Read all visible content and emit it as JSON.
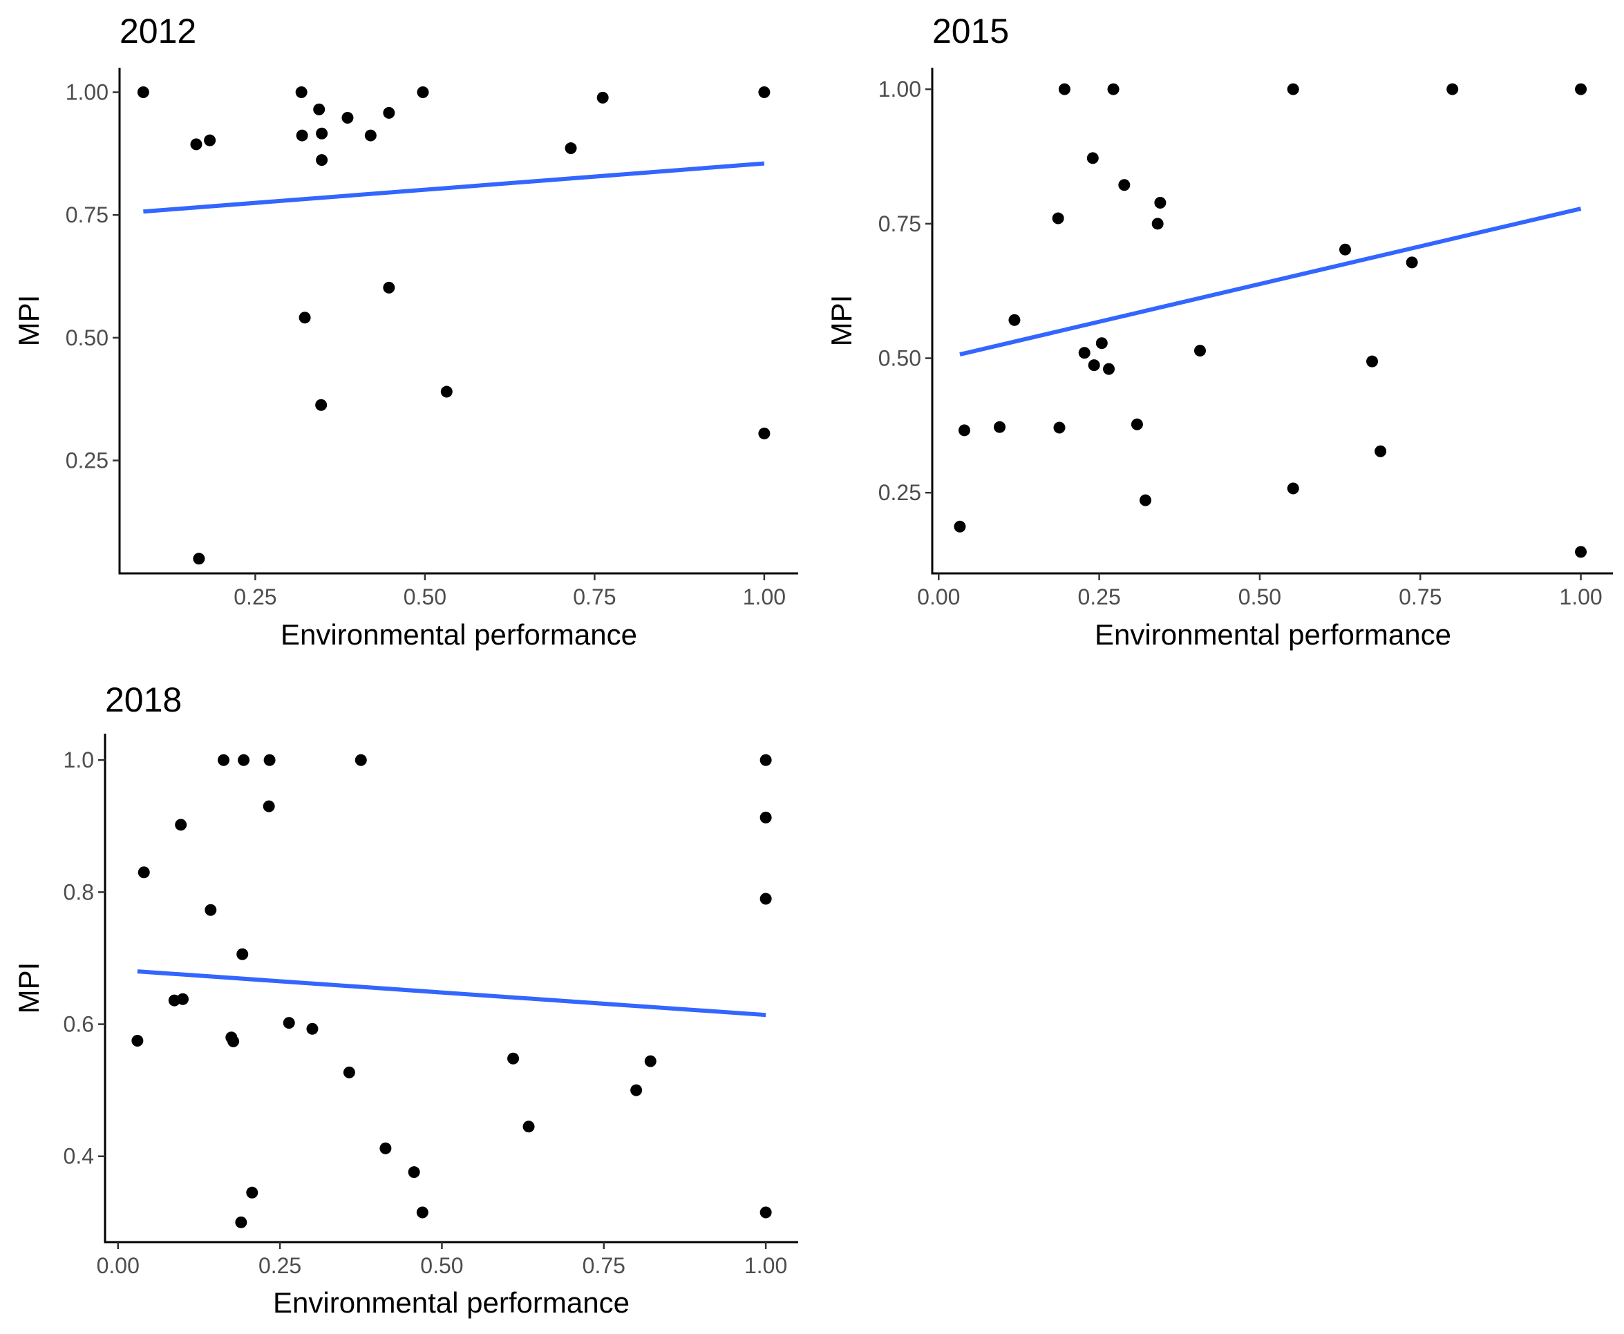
{
  "chart_data": [
    {
      "type": "scatter",
      "title": "2012",
      "xlabel": "Environmental performance",
      "ylabel": "MPI",
      "xlim": [
        0.05,
        1.05
      ],
      "ylim": [
        0.02,
        1.05
      ],
      "xticks": [
        0.25,
        0.5,
        0.75,
        1.0
      ],
      "xtick_labels": [
        "0.25",
        "0.50",
        "0.75",
        "1.00"
      ],
      "yticks": [
        0.25,
        0.5,
        0.75,
        1.0
      ],
      "ytick_labels": [
        "0.25",
        "0.50",
        "0.75",
        "1.00"
      ],
      "grid": false,
      "trend_line": {
        "x": [
          0.085,
          1.0
        ],
        "y": [
          0.757,
          0.855
        ],
        "color": "#3366FF"
      },
      "points": [
        [
          0.085,
          1.0
        ],
        [
          0.163,
          0.894
        ],
        [
          0.183,
          0.902
        ],
        [
          0.167,
          0.05
        ],
        [
          0.318,
          1.0
        ],
        [
          0.319,
          0.912
        ],
        [
          0.344,
          0.965
        ],
        [
          0.348,
          0.916
        ],
        [
          0.348,
          0.862
        ],
        [
          0.386,
          0.948
        ],
        [
          0.42,
          0.912
        ],
        [
          0.447,
          0.958
        ],
        [
          0.497,
          1.0
        ],
        [
          0.323,
          0.541
        ],
        [
          0.347,
          0.363
        ],
        [
          0.447,
          0.602
        ],
        [
          0.532,
          0.39
        ],
        [
          0.715,
          0.886
        ],
        [
          0.762,
          0.989
        ],
        [
          1.0,
          1.0
        ],
        [
          1.0,
          0.305
        ]
      ]
    },
    {
      "type": "scatter",
      "title": "2015",
      "xlabel": "Environmental performance",
      "ylabel": "MPI",
      "xlim": [
        -0.01,
        1.05
      ],
      "ylim": [
        0.1,
        1.04
      ],
      "xticks": [
        0.0,
        0.25,
        0.5,
        0.75,
        1.0
      ],
      "xtick_labels": [
        "0.00",
        "0.25",
        "0.50",
        "0.75",
        "1.00"
      ],
      "yticks": [
        0.25,
        0.5,
        0.75,
        1.0
      ],
      "ytick_labels": [
        "0.25",
        "0.50",
        "0.75",
        "1.00"
      ],
      "grid": false,
      "trend_line": {
        "x": [
          0.033,
          1.0
        ],
        "y": [
          0.507,
          0.778
        ],
        "color": "#3366FF"
      },
      "points": [
        [
          0.033,
          0.187
        ],
        [
          0.04,
          0.366
        ],
        [
          0.095,
          0.372
        ],
        [
          0.118,
          0.571
        ],
        [
          0.186,
          0.76
        ],
        [
          0.188,
          0.371
        ],
        [
          0.196,
          1.0
        ],
        [
          0.227,
          0.51
        ],
        [
          0.24,
          0.872
        ],
        [
          0.242,
          0.487
        ],
        [
          0.254,
          0.528
        ],
        [
          0.265,
          0.48
        ],
        [
          0.272,
          1.0
        ],
        [
          0.289,
          0.822
        ],
        [
          0.309,
          0.377
        ],
        [
          0.322,
          0.236
        ],
        [
          0.341,
          0.75
        ],
        [
          0.345,
          0.789
        ],
        [
          0.407,
          0.514
        ],
        [
          0.552,
          1.0
        ],
        [
          0.552,
          0.258
        ],
        [
          0.633,
          0.702
        ],
        [
          0.675,
          0.494
        ],
        [
          0.688,
          0.327
        ],
        [
          0.737,
          0.678
        ],
        [
          0.8,
          1.0
        ],
        [
          1.0,
          1.0
        ],
        [
          1.0,
          0.14
        ]
      ]
    },
    {
      "type": "scatter",
      "title": "2018",
      "xlabel": "Environmental performance",
      "ylabel": "MPI",
      "xlim": [
        -0.02,
        1.05
      ],
      "ylim": [
        0.27,
        1.04
      ],
      "xticks": [
        0.0,
        0.25,
        0.5,
        0.75,
        1.0
      ],
      "xtick_labels": [
        "0.00",
        "0.25",
        "0.50",
        "0.75",
        "1.00"
      ],
      "yticks": [
        0.4,
        0.6,
        0.8,
        1.0
      ],
      "ytick_labels": [
        "0.4",
        "0.6",
        "0.8",
        "1.0"
      ],
      "grid": false,
      "trend_line": {
        "x": [
          0.03,
          1.0
        ],
        "y": [
          0.68,
          0.614
        ],
        "color": "#3366FF"
      },
      "points": [
        [
          0.03,
          0.575
        ],
        [
          0.04,
          0.83
        ],
        [
          0.087,
          0.636
        ],
        [
          0.097,
          0.902
        ],
        [
          0.1,
          0.638
        ],
        [
          0.143,
          0.773
        ],
        [
          0.163,
          1.0
        ],
        [
          0.175,
          0.58
        ],
        [
          0.178,
          0.574
        ],
        [
          0.19,
          0.3
        ],
        [
          0.192,
          0.706
        ],
        [
          0.194,
          1.0
        ],
        [
          0.207,
          0.345
        ],
        [
          0.233,
          0.93
        ],
        [
          0.234,
          1.0
        ],
        [
          0.264,
          0.602
        ],
        [
          0.3,
          0.593
        ],
        [
          0.357,
          0.527
        ],
        [
          0.375,
          1.0
        ],
        [
          0.413,
          0.412
        ],
        [
          0.457,
          0.376
        ],
        [
          0.47,
          0.315
        ],
        [
          0.61,
          0.548
        ],
        [
          0.634,
          0.445
        ],
        [
          0.8,
          0.5
        ],
        [
          0.822,
          0.544
        ],
        [
          1.0,
          1.0
        ],
        [
          1.0,
          0.913
        ],
        [
          1.0,
          0.79
        ],
        [
          1.0,
          0.315
        ]
      ]
    }
  ]
}
